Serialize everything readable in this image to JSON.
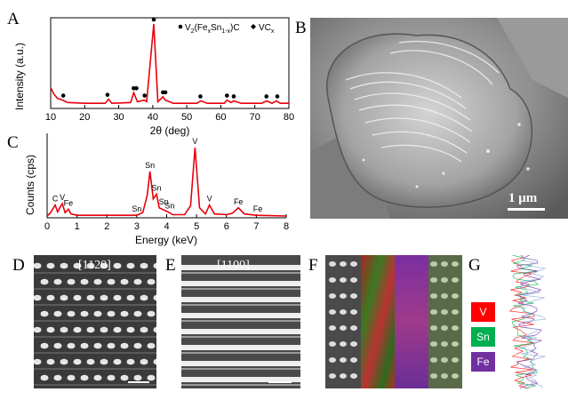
{
  "panel_labels": {
    "A": "A",
    "B": "B",
    "C": "C",
    "D": "D",
    "E": "E",
    "F": "F",
    "G": "G"
  },
  "colors": {
    "curve": "#e8000b",
    "marker": "#000000",
    "V": "#ff0000",
    "Sn": "#00b050",
    "Fe": "#7030a0"
  },
  "chart_data": [
    {
      "type": "line",
      "panel": "A",
      "xlabel": "2θ (deg)",
      "ylabel": "Intensity (a.u.)",
      "xlim": [
        10,
        80
      ],
      "xticks": [
        "10",
        "20",
        "30",
        "40",
        "50",
        "60",
        "70",
        "80"
      ],
      "legend": {
        "phase1": "V2(FexSn1-x)C",
        "phase2": "VCx",
        "placement": "top-right"
      },
      "series": [
        {
          "x": [
            10,
            11,
            12,
            13.5,
            15,
            20,
            26,
            27,
            28,
            33.5,
            34.4,
            35.5,
            37.5,
            38.2,
            40.3,
            41.5,
            43,
            43.7,
            46,
            53,
            54.1,
            56,
            61,
            61.8,
            63,
            63.8,
            66,
            72,
            73.5,
            75,
            76.3,
            77.5,
            80
          ],
          "y": [
            22,
            14,
            9,
            7,
            4,
            3,
            3,
            8,
            3,
            4,
            16,
            5,
            7,
            5,
            100,
            5,
            11,
            7,
            3,
            3,
            6,
            3,
            3,
            7,
            4,
            6,
            3,
            3,
            6,
            3,
            6,
            3,
            3
          ]
        }
      ],
      "markers": [
        13.7,
        26.7,
        34.4,
        35.2,
        37.6,
        40.3,
        43.0,
        43.7,
        54.0,
        61.8,
        63.8,
        73.4,
        76.6
      ]
    },
    {
      "type": "line",
      "panel": "C",
      "xlabel": "Energy (keV)",
      "ylabel": "Counts (cps)",
      "xlim": [
        0,
        8
      ],
      "xticks": [
        "0",
        "1",
        "2",
        "3",
        "4",
        "5",
        "6",
        "7",
        "8"
      ],
      "series": [
        {
          "x": [
            0,
            0.1,
            0.27,
            0.35,
            0.45,
            0.51,
            0.6,
            0.71,
            0.8,
            1,
            2,
            3,
            3.2,
            3.35,
            3.44,
            3.55,
            3.66,
            3.75,
            3.9,
            4.05,
            4.2,
            4.6,
            4.8,
            4.95,
            5.1,
            5.3,
            5.43,
            5.6,
            6,
            6.2,
            6.4,
            6.6,
            7,
            8
          ],
          "y": [
            0,
            4,
            16,
            6,
            14,
            18,
            5,
            10,
            3,
            1,
            1,
            1,
            5,
            30,
            65,
            25,
            32,
            12,
            9,
            6,
            2,
            2,
            15,
            100,
            12,
            3,
            16,
            3,
            2,
            4,
            12,
            3,
            1,
            0
          ]
        }
      ],
      "labels": [
        {
          "text": "C",
          "x": 0.27
        },
        {
          "text": "V",
          "x": 0.51
        },
        {
          "text": "Fe",
          "x": 0.71
        },
        {
          "text": "Sn",
          "x": 3.0
        },
        {
          "text": "Sn",
          "x": 3.44
        },
        {
          "text": "Sn",
          "x": 3.66
        },
        {
          "text": "Sn",
          "x": 3.9
        },
        {
          "text": "Sn",
          "x": 4.1
        },
        {
          "text": "V",
          "x": 4.95
        },
        {
          "text": "V",
          "x": 5.43
        },
        {
          "text": "Fe",
          "x": 6.4
        },
        {
          "text": "Fe",
          "x": 7.05
        }
      ]
    }
  ],
  "sem": {
    "scale_bar": "1 μm"
  },
  "zone_D": "[1120]",
  "zone_E": "[1100]",
  "legend_G": {
    "V": "V",
    "Sn": "Sn",
    "Fe": "Fe"
  }
}
